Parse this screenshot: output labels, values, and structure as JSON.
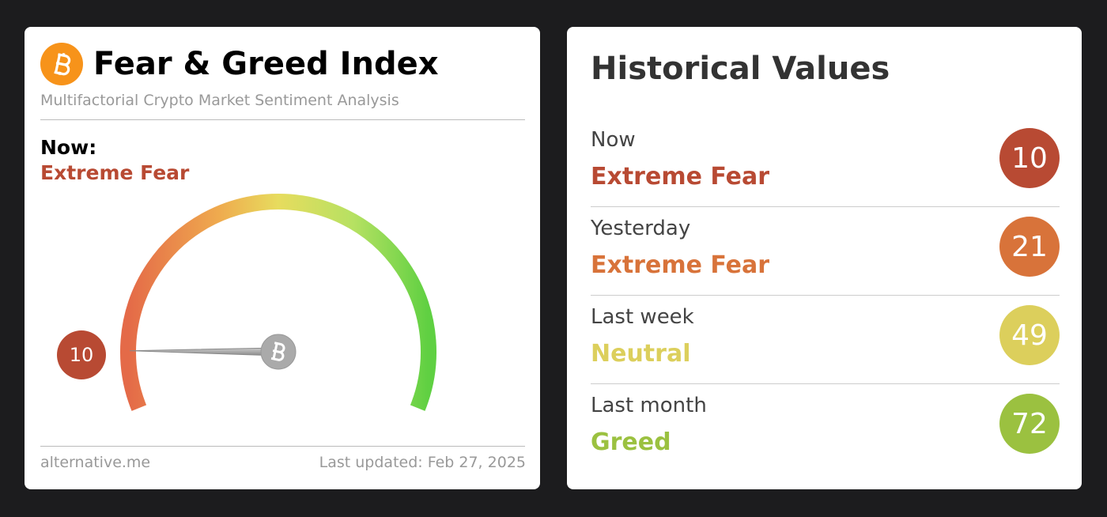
{
  "header": {
    "title": "Fear & Greed Index",
    "subtitle": "Multifactorial Crypto Market Sentiment Analysis"
  },
  "now": {
    "label": "Now:",
    "classification": "Extreme Fear",
    "color": "#b84a33"
  },
  "gauge": {
    "value": 10,
    "range": [
      0,
      100
    ]
  },
  "footer": {
    "source": "alternative.me",
    "updated": "Last updated: Feb 27, 2025"
  },
  "history": {
    "title": "Historical Values",
    "rows": [
      {
        "period": "Now",
        "classification": "Extreme Fear",
        "value": 10,
        "color": "#b84a33"
      },
      {
        "period": "Yesterday",
        "classification": "Extreme Fear",
        "value": 21,
        "color": "#d8733a"
      },
      {
        "period": "Last week",
        "classification": "Neutral",
        "value": 49,
        "color": "#dccf5c"
      },
      {
        "period": "Last month",
        "classification": "Greed",
        "value": 72,
        "color": "#9bc140"
      }
    ]
  }
}
